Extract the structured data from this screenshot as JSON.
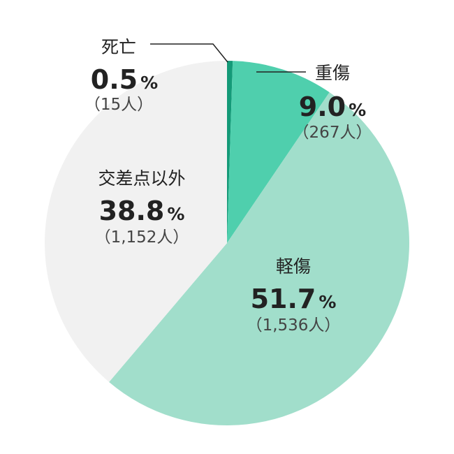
{
  "chart_data": {
    "type": "pie",
    "title": "",
    "slices": [
      {
        "label": "死亡",
        "percent": 0.5,
        "percent_text": "0.5",
        "count_text": "（15人）",
        "color": "#149a78"
      },
      {
        "label": "重傷",
        "percent": 9.0,
        "percent_text": "9.0",
        "count_text": "（267人）",
        "color": "#4fcfad"
      },
      {
        "label": "軽傷",
        "percent": 51.7,
        "percent_text": "51.7",
        "count_text": "（1,536人）",
        "color": "#a1decb"
      },
      {
        "label": "交差点以外",
        "percent": 38.8,
        "percent_text": "38.8",
        "count_text": "（1,152人）",
        "color": "#f1f1f1"
      }
    ],
    "percent_unit": "%"
  }
}
